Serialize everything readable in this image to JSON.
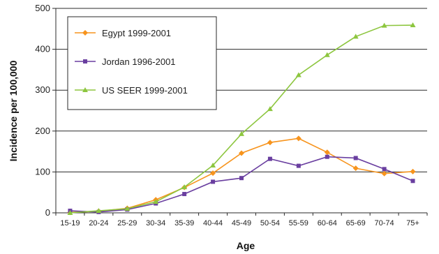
{
  "chart_data": {
    "type": "line",
    "title": "",
    "xlabel": "Age",
    "ylabel": "Incidence per 100,000",
    "categories": [
      "15-19",
      "20-24",
      "25-29",
      "30-34",
      "35-39",
      "40-44",
      "45-49",
      "50-54",
      "55-59",
      "60-64",
      "65-69",
      "70-74",
      "75+"
    ],
    "ylim": [
      0,
      500
    ],
    "yticks": [
      0,
      100,
      200,
      300,
      400,
      500
    ],
    "grid": "horizontal",
    "legend_position": "top-left",
    "series": [
      {
        "name": "Egypt 1999-2001",
        "color": "#f7941d",
        "marker": "diamond",
        "values": [
          1,
          4,
          11,
          32,
          62,
          97,
          146,
          172,
          182,
          148,
          109,
          96,
          101
        ]
      },
      {
        "name": "Jordan 1996-2001",
        "color": "#6a3fa0",
        "marker": "square",
        "values": [
          5,
          2,
          8,
          23,
          46,
          76,
          85,
          132,
          115,
          137,
          134,
          107,
          78
        ]
      },
      {
        "name": "US SEER 1999-2001",
        "color": "#8dc63f",
        "marker": "triangle",
        "values": [
          0,
          5,
          10,
          27,
          63,
          116,
          193,
          254,
          337,
          386,
          431,
          458,
          459
        ]
      }
    ]
  }
}
